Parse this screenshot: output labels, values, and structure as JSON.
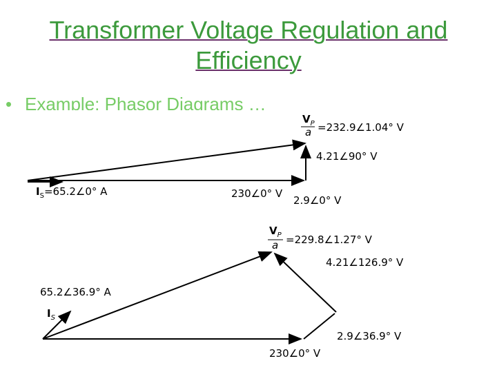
{
  "title": "Transformer Voltage Regulation and Efficiency",
  "bullet": "Example: Phasor Diagrams …",
  "top_diagram": {
    "vp_symbol": "V",
    "vp_subscript": "P",
    "vp_denominator": "a",
    "vp_value": "=232.9∠1.04° V",
    "reactive_drop": "4.21∠90° V",
    "current": "I",
    "current_subscript": "S",
    "current_value": "=65.2∠0° A",
    "secondary_voltage": "230∠0° V",
    "resistive_drop": "2.9∠0° V"
  },
  "bottom_diagram": {
    "vp_symbol": "V",
    "vp_subscript": "P",
    "vp_denominator": "a",
    "vp_value": "=229.8∠1.27° V",
    "reactive_drop": "4.21∠126.9° V",
    "current_value": "65.2∠36.9° A",
    "current": "I",
    "current_subscript": "S",
    "secondary_voltage": "230∠0° V",
    "resistive_drop": "2.9∠36.9° V"
  }
}
